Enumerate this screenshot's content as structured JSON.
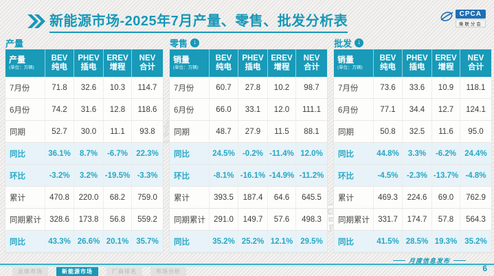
{
  "title": {
    "text": "新能源市场-2025年7月产量、零售、批发分析表"
  },
  "logo": {
    "name": "CPCA",
    "caption": "乘联分会"
  },
  "colors": {
    "teal": "#1798b8",
    "header_bg": "#189ab8",
    "highlight_bg": "#e7f3f8",
    "highlight_text": "#27a7c6"
  },
  "tables": [
    {
      "section": "产量",
      "has_arrow": false,
      "corner_label": "产量",
      "corner_unit": "(单位：万辆)",
      "columns": [
        [
          "BEV",
          "纯电"
        ],
        [
          "PHEV",
          "插电"
        ],
        [
          "EREV",
          "增程"
        ],
        [
          "NEV",
          "合计"
        ]
      ],
      "rows": [
        {
          "label": "7月份",
          "values": [
            "71.8",
            "32.6",
            "10.3",
            "114.7"
          ],
          "highlight": false
        },
        {
          "label": "6月份",
          "values": [
            "74.2",
            "31.6",
            "12.8",
            "118.6"
          ],
          "highlight": false
        },
        {
          "label": "同期",
          "values": [
            "52.7",
            "30.0",
            "11.1",
            "93.8"
          ],
          "highlight": false
        },
        {
          "label": "同比",
          "values": [
            "36.1%",
            "8.7%",
            "-6.7%",
            "22.3%"
          ],
          "highlight": true
        },
        {
          "label": "环比",
          "values": [
            "-3.2%",
            "3.2%",
            "-19.5%",
            "-3.3%"
          ],
          "highlight": true
        },
        {
          "label": "累计",
          "values": [
            "470.8",
            "220.0",
            "68.2",
            "759.0"
          ],
          "highlight": false
        },
        {
          "label": "同期累计",
          "values": [
            "328.6",
            "173.8",
            "56.8",
            "559.2"
          ],
          "highlight": false
        },
        {
          "label": "同比",
          "values": [
            "43.3%",
            "26.6%",
            "20.1%",
            "35.7%"
          ],
          "highlight": true
        }
      ]
    },
    {
      "section": "零售",
      "has_arrow": true,
      "corner_label": "销量",
      "corner_unit": "(单位：万辆)",
      "columns": [
        [
          "BEV",
          "纯电"
        ],
        [
          "PHEV",
          "插电"
        ],
        [
          "EREV",
          "增程"
        ],
        [
          "NEV",
          "合计"
        ]
      ],
      "rows": [
        {
          "label": "7月份",
          "values": [
            "60.7",
            "27.8",
            "10.2",
            "98.7"
          ],
          "highlight": false
        },
        {
          "label": "6月份",
          "values": [
            "66.0",
            "33.1",
            "12.0",
            "111.1"
          ],
          "highlight": false
        },
        {
          "label": "同期",
          "values": [
            "48.7",
            "27.9",
            "11.5",
            "88.1"
          ],
          "highlight": false
        },
        {
          "label": "同比",
          "values": [
            "24.5%",
            "-0.2%",
            "-11.4%",
            "12.0%"
          ],
          "highlight": true
        },
        {
          "label": "环比",
          "values": [
            "-8.1%",
            "-16.1%",
            "-14.9%",
            "-11.2%"
          ],
          "highlight": true
        },
        {
          "label": "累计",
          "values": [
            "393.5",
            "187.4",
            "64.6",
            "645.5"
          ],
          "highlight": false
        },
        {
          "label": "同期累计",
          "values": [
            "291.0",
            "149.7",
            "57.6",
            "498.3"
          ],
          "highlight": false
        },
        {
          "label": "同比",
          "values": [
            "35.2%",
            "25.2%",
            "12.1%",
            "29.5%"
          ],
          "highlight": true
        }
      ]
    },
    {
      "section": "批发",
      "has_arrow": true,
      "corner_label": "销量",
      "corner_unit": "(单位：万辆)",
      "columns": [
        [
          "BEV",
          "纯电"
        ],
        [
          "PHEV",
          "插电"
        ],
        [
          "EREV",
          "增程"
        ],
        [
          "NEV",
          "合计"
        ]
      ],
      "rows": [
        {
          "label": "7月份",
          "values": [
            "73.6",
            "33.6",
            "10.9",
            "118.1"
          ],
          "highlight": false
        },
        {
          "label": "6月份",
          "values": [
            "77.1",
            "34.4",
            "12.7",
            "124.1"
          ],
          "highlight": false
        },
        {
          "label": "同期",
          "values": [
            "50.8",
            "32.5",
            "11.6",
            "95.0"
          ],
          "highlight": false
        },
        {
          "label": "同比",
          "values": [
            "44.8%",
            "3.3%",
            "-6.2%",
            "24.4%"
          ],
          "highlight": true
        },
        {
          "label": "环比",
          "values": [
            "-4.5%",
            "-2.3%",
            "-13.7%",
            "-4.8%"
          ],
          "highlight": true
        },
        {
          "label": "累计",
          "values": [
            "469.3",
            "224.6",
            "69.0",
            "762.9"
          ],
          "highlight": false
        },
        {
          "label": "同期累计",
          "values": [
            "331.7",
            "174.7",
            "57.8",
            "564.3"
          ],
          "highlight": false
        },
        {
          "label": "同比",
          "values": [
            "41.5%",
            "28.5%",
            "19.3%",
            "35.2%"
          ],
          "highlight": true
        }
      ]
    }
  ],
  "watermark": {
    "text": "车壹圈"
  },
  "footer": {
    "tabs": [
      {
        "label": "总体市场",
        "active": false
      },
      {
        "label": "新能源市场",
        "active": true
      },
      {
        "label": "厂商排名",
        "active": false
      },
      {
        "label": "市场分析",
        "active": false
      }
    ],
    "release_label": "月度信息发布",
    "page": "6"
  }
}
